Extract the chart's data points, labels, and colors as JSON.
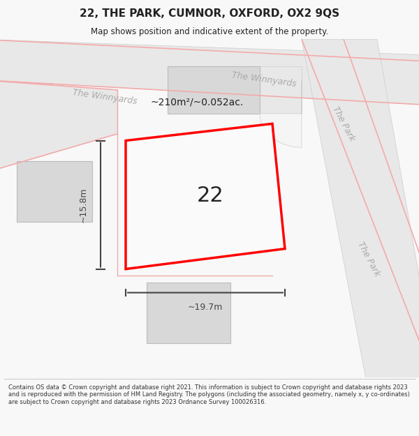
{
  "title": "22, THE PARK, CUMNOR, OXFORD, OX2 9QS",
  "subtitle": "Map shows position and indicative extent of the property.",
  "footer": "Contains OS data © Crown copyright and database right 2021. This information is subject to Crown copyright and database rights 2023 and is reproduced with the permission of HM Land Registry. The polygons (including the associated geometry, namely x, y co-ordinates) are subject to Crown copyright and database rights 2023 Ordnance Survey 100026316.",
  "bg_color": "#f8f8f8",
  "map_bg": "#ffffff",
  "road_fill": "#e8e8e8",
  "road_stroke": "#cccccc",
  "plot_color": "#ff0000",
  "building_fill": "#d8d8d8",
  "building_stroke": "#bbbbbb",
  "street_label_color": "#aaaaaa",
  "dim_color": "#444444",
  "label_22": "22",
  "area_label": "~210m²/~0.052ac.",
  "dim_width": "~19.7m",
  "dim_height": "~15.8m",
  "street1": "The Winnyards",
  "street2": "The Winnyards",
  "street3": "The Park",
  "street4": "The Park"
}
